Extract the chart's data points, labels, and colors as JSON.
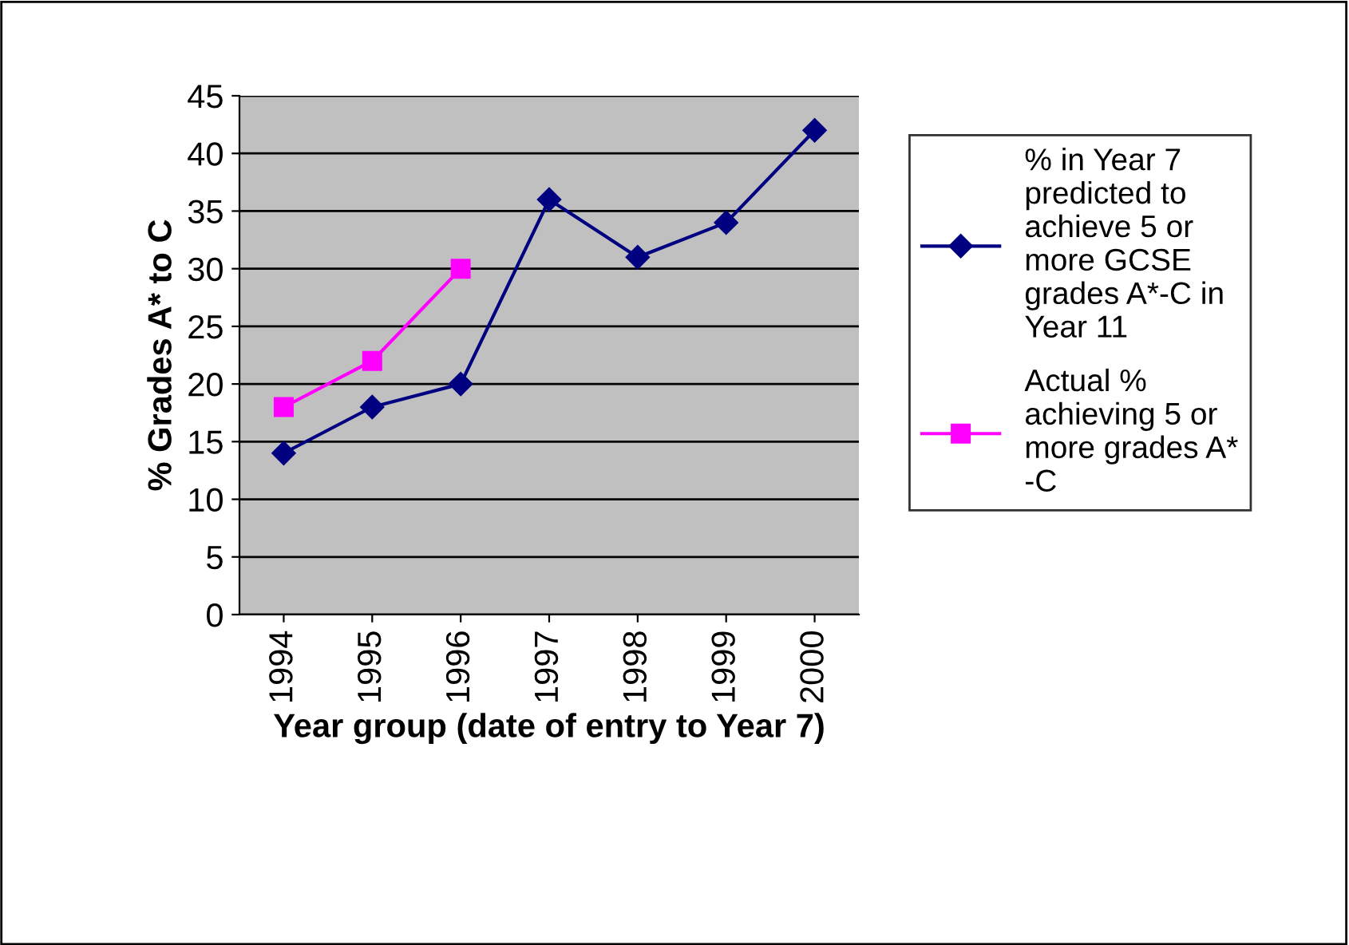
{
  "chart_data": {
    "type": "line",
    "xlabel": "Year group (date of entry to Year 7)",
    "ylabel": "% Grades A* to C",
    "categories": [
      "1994",
      "1995",
      "1996",
      "1997",
      "1998",
      "1999",
      "2000"
    ],
    "series": [
      {
        "name": "% in Year 7 predicted to achieve 5 or more GCSE grades A*-C in Year 11",
        "color": "#000080",
        "marker": "diamond",
        "values": [
          14,
          18,
          20,
          36,
          31,
          34,
          42
        ]
      },
      {
        "name": "Actual % achieving 5 or more grades A* -C",
        "color": "#ff00ff",
        "marker": "square",
        "values": [
          18,
          22,
          30,
          null,
          null,
          null,
          null
        ]
      }
    ],
    "ylim": [
      0,
      45
    ],
    "yticks": [
      0,
      5,
      10,
      15,
      20,
      25,
      30,
      35,
      40,
      45
    ],
    "grid": "y",
    "legend": "right",
    "line_style": "solid"
  }
}
